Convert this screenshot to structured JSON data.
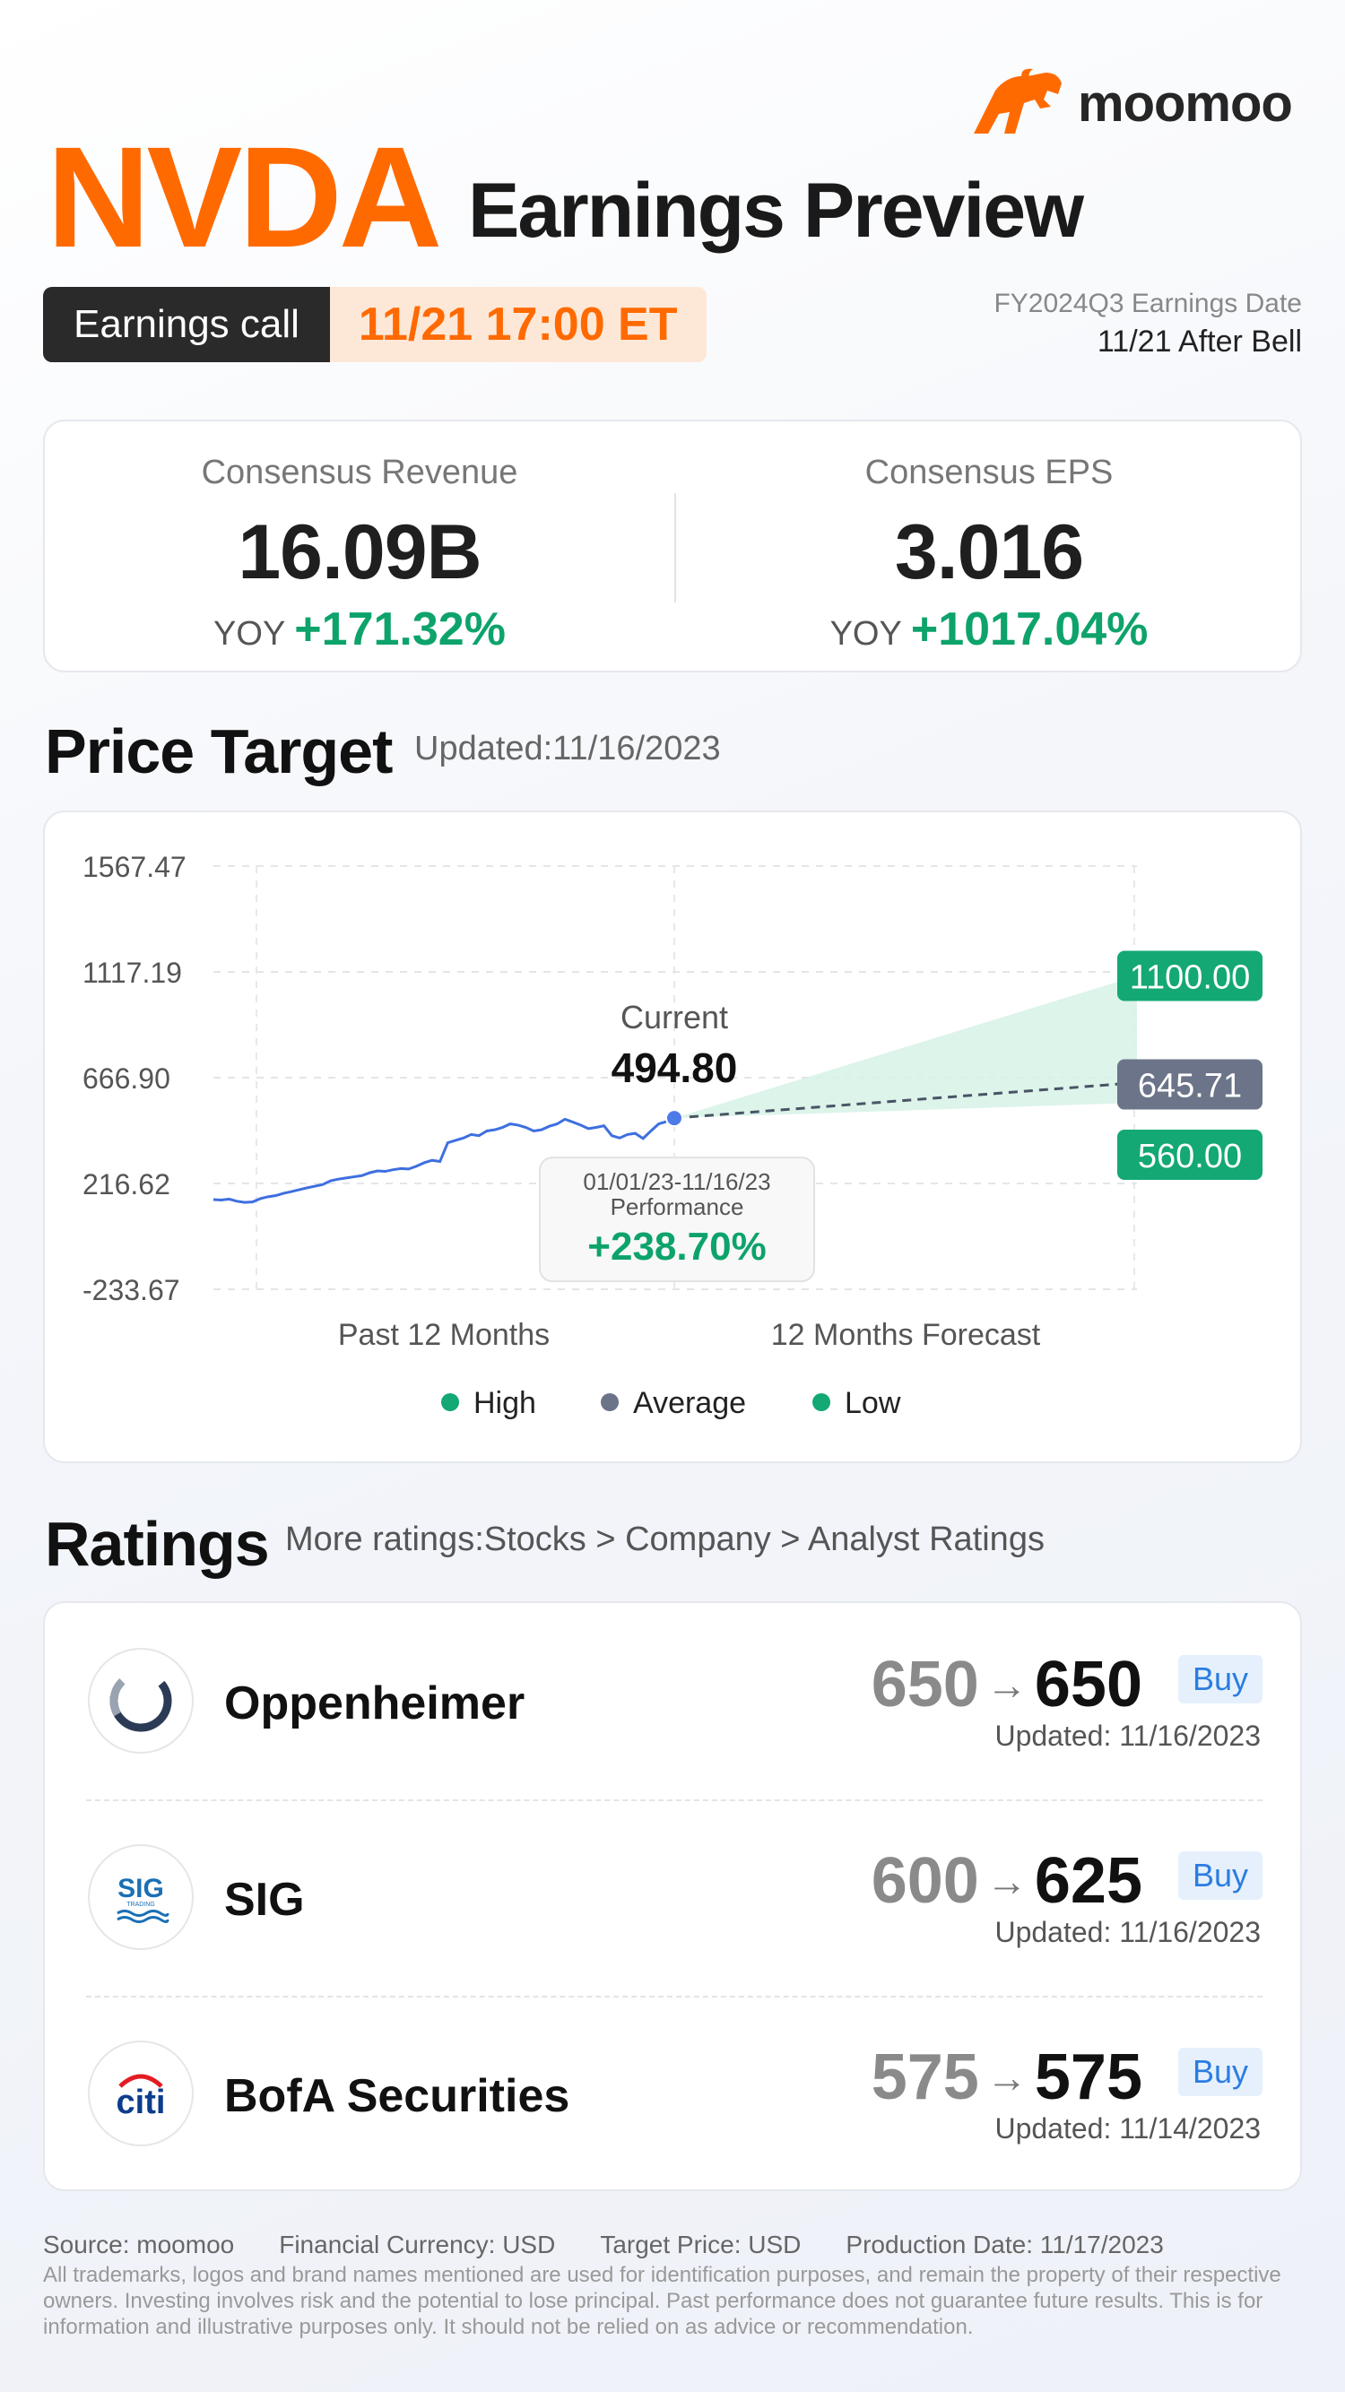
{
  "brand": {
    "name": "moomoo",
    "color": "#ff6a00"
  },
  "header": {
    "ticker": "NVDA",
    "title": "Earnings Preview",
    "call_label": "Earnings call",
    "call_time": "11/21 17:00 ET",
    "fy_label": "FY2024Q3 Earnings Date",
    "fy_date": "11/21  After Bell"
  },
  "consensus": {
    "revenue_label": "Consensus Revenue",
    "revenue_value": "16.09B",
    "revenue_yoy_label": "YOY",
    "revenue_yoy": "+171.32%",
    "eps_label": "Consensus EPS",
    "eps_value": "3.016",
    "eps_yoy_label": "YOY",
    "eps_yoy": "+1017.04%"
  },
  "price_target": {
    "title": "Price Target",
    "updated": "Updated:11/16/2023",
    "current_label": "Current",
    "current_value": "494.80",
    "perf_range": "01/01/23-11/16/23",
    "perf_label": "Performance",
    "perf_value": "+238.70%",
    "high_value": "1100.00",
    "avg_value": "645.71",
    "low_value": "560.00"
  },
  "chart_data": {
    "type": "line",
    "title": "Price Target",
    "yticks": [
      "1567.47",
      "1117.19",
      "666.90",
      "216.62",
      "-233.67"
    ],
    "ylim": [
      -233.67,
      1567.47
    ],
    "xlabels": [
      "Past 12 Months",
      "12 Months Forecast"
    ],
    "series": [
      {
        "name": "Price",
        "values": [
          148,
          146,
          150,
          141,
          136,
          138,
          152,
          160,
          165,
          175,
          182,
          190,
          198,
          205,
          212,
          228,
          235,
          240,
          245,
          250,
          262,
          270,
          268,
          275,
          280,
          278,
          290,
          305,
          315,
          310,
          390,
          400,
          410,
          425,
          420,
          440,
          445,
          455,
          470,
          465,
          455,
          440,
          445,
          460,
          470,
          490,
          478,
          465,
          450,
          455,
          462,
          420,
          410,
          425,
          430,
          408,
          440,
          470,
          480,
          494.8
        ]
      },
      {
        "name": "High",
        "values": [
          494.8,
          1100.0
        ]
      },
      {
        "name": "Average",
        "values": [
          494.8,
          645.71
        ]
      },
      {
        "name": "Low",
        "values": [
          494.8,
          560.0
        ]
      }
    ],
    "current": 494.8,
    "high": 1100.0,
    "average": 645.71,
    "low": 560.0,
    "legend": [
      "High",
      "Average",
      "Low"
    ],
    "legend_position": "bottom",
    "colors": {
      "price": "#3e6fe0",
      "high": "#13a874",
      "average": "#6b7488",
      "low": "#13a874",
      "band": "#d6f2e6"
    }
  },
  "ratings": {
    "title": "Ratings",
    "subtitle": "More ratings:Stocks > Company > Analyst Ratings",
    "items": [
      {
        "firm": "Oppenheimer",
        "from": "650",
        "to": "650",
        "rating": "Buy",
        "updated": "Updated: 11/16/2023",
        "logo": "oppenheimer-logo"
      },
      {
        "firm": "SIG",
        "from": "600",
        "to": "625",
        "rating": "Buy",
        "updated": "Updated: 11/16/2023",
        "logo": "sig-logo"
      },
      {
        "firm": "BofA Securities",
        "from": "575",
        "to": "575",
        "rating": "Buy",
        "updated": "Updated: 11/14/2023",
        "logo": "citi-logo"
      }
    ],
    "arrow": "→",
    "sig_logo_text": "SIG",
    "sig_logo_sub": "TRADING",
    "citi_logo_text": "citi"
  },
  "footer": {
    "source": "Source: moomoo",
    "currency": "Financial Currency: USD",
    "target": "Target Price: USD",
    "production": "Production Date: 11/17/2023",
    "disclaimer": "All trademarks, logos and brand names mentioned are used for identification purposes, and remain the property of their respective owners. Investing involves risk and the potential to lose principal. Past performance does not guarantee future results. This is for information and illustrative purposes only. It should not be relied on as advice or recommendation."
  }
}
